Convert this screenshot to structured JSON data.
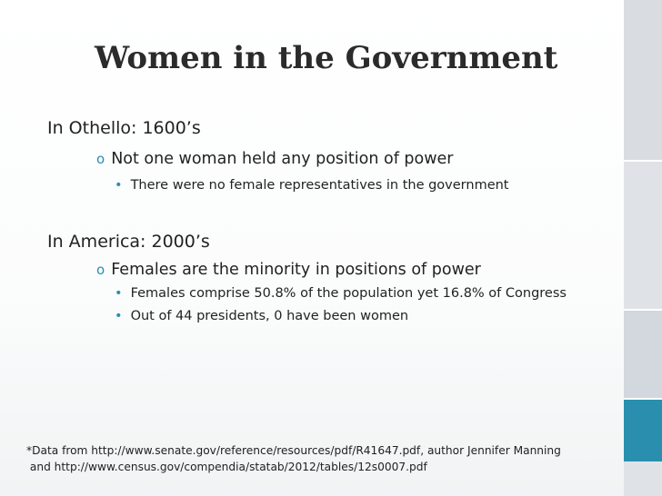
{
  "slide": {
    "title": "Women in the Government",
    "sections": [
      {
        "heading": "In Othello: 1600’s",
        "subpoint": "Not one woman held any position of power",
        "details": [
          "There were no female representatives in the government"
        ]
      },
      {
        "heading": "In America: 2000’s",
        "subpoint": "Females are the minority in positions of power",
        "details": [
          "Females comprise 50.8% of the population yet 16.8% of Congress",
          "Out of 44 presidents, 0 have been women"
        ]
      }
    ],
    "footnote_lines": [
      "*Data from http://www.senate.gov/reference/resources/pdf/R41647.pdf, author Jennifer Manning",
      " and http://www.census.gov/compendia/statab/2012/tables/12s0007.pdf"
    ],
    "bullet_symbols": {
      "level2": "o",
      "level3": "•"
    }
  },
  "colors": {
    "accent": "#2a8fae",
    "text": "#222222",
    "strip": "#d9dde2"
  }
}
